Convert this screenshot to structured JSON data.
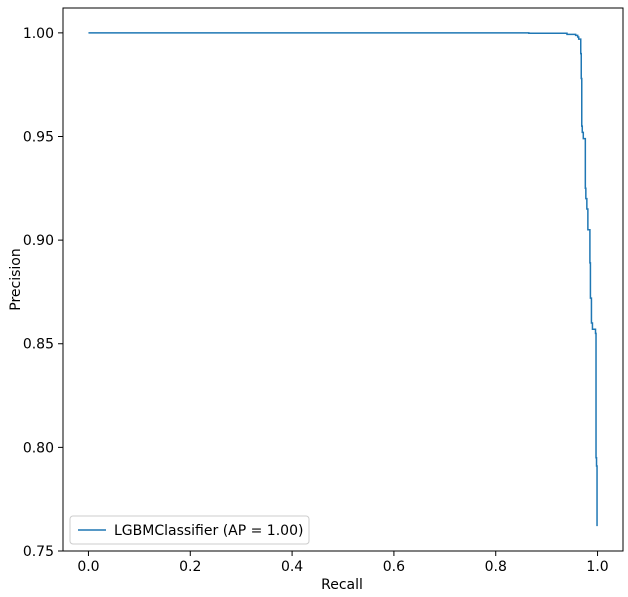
{
  "chart_data": {
    "type": "line",
    "xlabel": "Recall",
    "ylabel": "Precision",
    "xlim": [
      -0.05,
      1.05
    ],
    "ylim": [
      0.75,
      1.012
    ],
    "xticks": [
      0.0,
      0.2,
      0.4,
      0.6,
      0.8,
      1.0
    ],
    "xtick_labels": [
      "0.0",
      "0.2",
      "0.4",
      "0.6",
      "0.8",
      "1.0"
    ],
    "yticks": [
      0.75,
      0.8,
      0.85,
      0.9,
      0.95,
      1.0
    ],
    "ytick_labels": [
      "0.75",
      "0.80",
      "0.85",
      "0.90",
      "0.95",
      "1.00"
    ],
    "grid": false,
    "legend_position": "lower-left",
    "series": [
      {
        "name": "LGBMClassifier (AP = 1.00)",
        "color": "#1f77b4",
        "step": "post",
        "points": [
          [
            0.0,
            1.0
          ],
          [
            0.865,
            1.0
          ],
          [
            0.865,
            0.9998
          ],
          [
            0.94,
            0.9998
          ],
          [
            0.94,
            0.9993
          ],
          [
            0.957,
            0.9993
          ],
          [
            0.957,
            0.9988
          ],
          [
            0.961,
            0.9988
          ],
          [
            0.961,
            0.998
          ],
          [
            0.963,
            0.998
          ],
          [
            0.963,
            0.997
          ],
          [
            0.967,
            0.997
          ],
          [
            0.967,
            0.99
          ],
          [
            0.968,
            0.99
          ],
          [
            0.968,
            0.978
          ],
          [
            0.969,
            0.978
          ],
          [
            0.969,
            0.955
          ],
          [
            0.97,
            0.955
          ],
          [
            0.97,
            0.952
          ],
          [
            0.972,
            0.952
          ],
          [
            0.972,
            0.949
          ],
          [
            0.976,
            0.949
          ],
          [
            0.976,
            0.925
          ],
          [
            0.977,
            0.925
          ],
          [
            0.977,
            0.92
          ],
          [
            0.979,
            0.92
          ],
          [
            0.979,
            0.915
          ],
          [
            0.981,
            0.915
          ],
          [
            0.981,
            0.905
          ],
          [
            0.985,
            0.905
          ],
          [
            0.985,
            0.889
          ],
          [
            0.986,
            0.889
          ],
          [
            0.986,
            0.872
          ],
          [
            0.988,
            0.872
          ],
          [
            0.988,
            0.86
          ],
          [
            0.99,
            0.86
          ],
          [
            0.99,
            0.857
          ],
          [
            0.996,
            0.857
          ],
          [
            0.996,
            0.855
          ],
          [
            0.997,
            0.855
          ],
          [
            0.997,
            0.795
          ],
          [
            0.998,
            0.795
          ],
          [
            0.998,
            0.791
          ],
          [
            0.999,
            0.791
          ],
          [
            0.999,
            0.762
          ]
        ]
      }
    ]
  }
}
